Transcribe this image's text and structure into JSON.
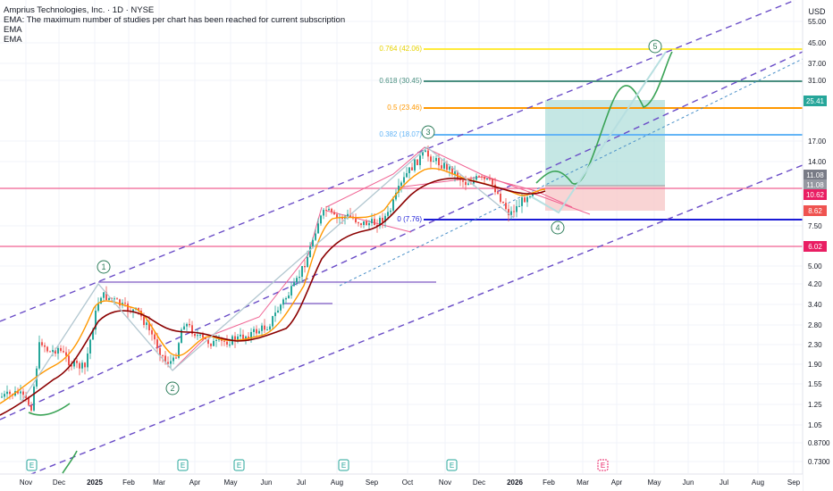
{
  "legend": {
    "title": "Amprius Technologies, Inc. · 1D · NYSE",
    "warning": "EMA: The maximum number of studies per chart has been reached for current subscription",
    "study_1": "EMA",
    "study_2": "EMA"
  },
  "price_axis": {
    "currency": "USD",
    "ticks": [
      "55.00",
      "45.00",
      "37.00",
      "31.00",
      "25.41",
      "17.00",
      "14.00",
      "11.08",
      "11.08",
      "10.62",
      "8.62",
      "7.50",
      "6.02",
      "5.00",
      "4.20",
      "3.40",
      "2.80",
      "2.30",
      "1.90",
      "1.55",
      "1.25",
      "1.05",
      "0.8700",
      "0.7300"
    ]
  },
  "time_axis": {
    "labels": [
      "Nov",
      "Dec",
      "2025",
      "Feb",
      "Mar",
      "Apr",
      "May",
      "Jun",
      "Jul",
      "Aug",
      "Sep",
      "Oct",
      "Nov",
      "Dec",
      "2026",
      "Feb",
      "Mar",
      "Apr",
      "May",
      "Jun",
      "Jul",
      "Aug",
      "Sep"
    ]
  },
  "price_tags": [
    {
      "label": "25.41",
      "color": "#26a69a"
    },
    {
      "label": "11.08",
      "color": "#787b86"
    },
    {
      "label": "11.08",
      "color": "#9598a1"
    },
    {
      "label": "10.62",
      "color": "#e91e63"
    },
    {
      "label": "8.62",
      "color": "#ef5350"
    },
    {
      "label": "6.02",
      "color": "#e91e63"
    }
  ],
  "fib_levels": [
    {
      "label": "0.764 (42.06)",
      "value": 42.06,
      "color": "#ffeb3b"
    },
    {
      "label": "0.618 (30.45)",
      "value": 30.45,
      "color": "#4a8f80"
    },
    {
      "label": "0.5 (23.46)",
      "value": 23.46,
      "color": "#ff9800"
    },
    {
      "label": "0.382 (18.07)",
      "value": 18.07,
      "color": "#64b5f6"
    },
    {
      "label": "0 (7.76)",
      "value": 7.76,
      "color": "#1a1ad6"
    }
  ],
  "horizontal_lines": [
    {
      "value": 10.62,
      "color": "#e91e63"
    },
    {
      "value": 6.02,
      "color": "#e91e63"
    }
  ],
  "wave_labels": [
    "1",
    "2",
    "3",
    "4",
    "5"
  ],
  "earnings_markers": [
    "E",
    "E",
    "E",
    "E",
    "E",
    "E"
  ],
  "chart_data": {
    "type": "line",
    "title": "Amprius Technologies, Inc. · 1D · NYSE",
    "y_scale": "log",
    "ylim": [
      0.7,
      62
    ],
    "xlabel": "",
    "ylabel": "",
    "series": [
      {
        "name": "EMA",
        "x": [
          "Nov",
          "Dec",
          "2025",
          "Feb",
          "Mar",
          "Apr",
          "May",
          "Jun",
          "Jul",
          "Aug",
          "Sep",
          "Oct",
          "Nov",
          "Dec",
          "2026"
        ],
        "values": [
          1.45,
          1.7,
          2.3,
          3.6,
          2.6,
          2.35,
          2.3,
          2.4,
          3.2,
          7.0,
          8.3,
          11.5,
          13.2,
          11.5,
          10.8
        ]
      },
      {
        "name": "EMA",
        "x": [
          "Nov",
          "Dec",
          "2025",
          "Feb",
          "Mar",
          "Apr",
          "May",
          "Jun",
          "Jul",
          "Aug",
          "Sep",
          "Oct",
          "Nov",
          "Dec",
          "2026"
        ],
        "values": [
          1.35,
          1.55,
          1.9,
          2.9,
          3.0,
          2.5,
          2.4,
          2.35,
          2.7,
          5.7,
          7.4,
          10.2,
          12.0,
          11.9,
          10.9
        ]
      }
    ],
    "grid": true
  }
}
